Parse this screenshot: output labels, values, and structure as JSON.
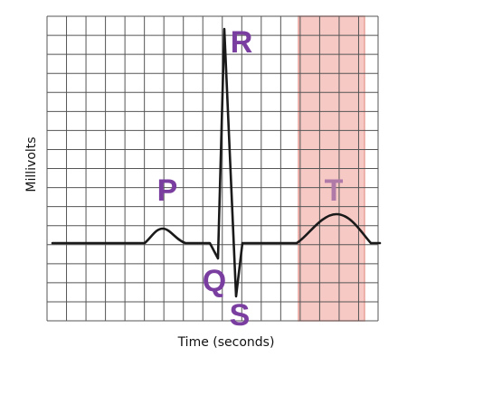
{
  "diagram": {
    "x_axis_label": "Time (seconds)",
    "y_axis_label": "Millivolts",
    "waves": [
      {
        "name": "p",
        "label": "P"
      },
      {
        "name": "q",
        "label": "Q"
      },
      {
        "name": "r",
        "label": "R"
      },
      {
        "name": "s",
        "label": "S"
      },
      {
        "name": "t",
        "label": "T"
      }
    ],
    "highlighted_segment": "T",
    "colors": {
      "label": "#7a3ea0",
      "highlighted_label": "#b07aa8",
      "highlight_fill": "#f6c9c5",
      "highlight_border": "#e8a19a",
      "grid": "#555555",
      "trace": "#1a1a1a"
    }
  }
}
